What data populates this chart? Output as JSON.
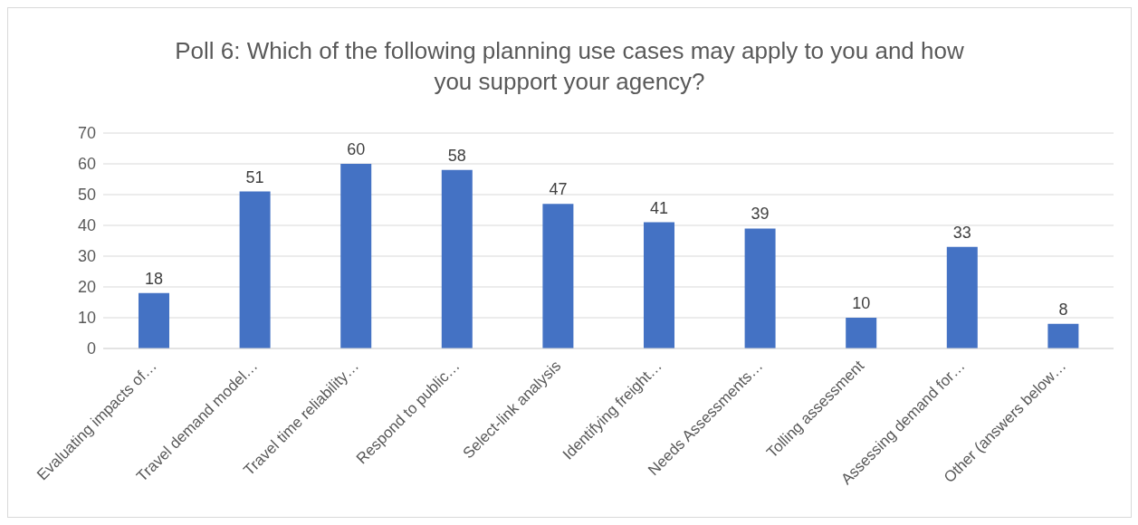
{
  "chart_data": {
    "type": "bar",
    "title": "Poll 6: Which of the following planning use cases may apply to you and how you support your agency?",
    "categories": [
      "Evaluating impacts of…",
      "Travel demand model…",
      "Travel time reliability…",
      "Respond to public…",
      "Select-link analysis",
      "Identifying freight…",
      "Needs Assessments…",
      "Tolling assessment",
      "Assessing demand for…",
      "Other (answers below…"
    ],
    "values": [
      18,
      51,
      60,
      58,
      47,
      41,
      39,
      10,
      33,
      8
    ],
    "color": "#4472c4",
    "ylim": [
      0,
      70
    ],
    "yticks": [
      0,
      10,
      20,
      30,
      40,
      50,
      60,
      70
    ],
    "grid": "y",
    "data_labels": true
  }
}
